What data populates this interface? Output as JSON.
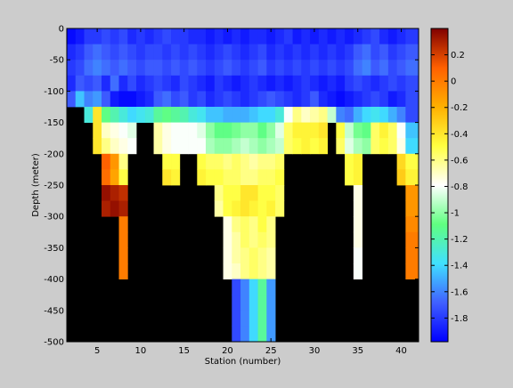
{
  "chart_data": {
    "type": "heatmap",
    "title": "",
    "xlabel": "Station (number)",
    "ylabel": "Depth (meter)",
    "xlim": [
      1.5,
      42.0
    ],
    "ylim": [
      -500,
      0
    ],
    "xticks": [
      5,
      10,
      15,
      20,
      25,
      30,
      35,
      40
    ],
    "yticks": [
      0,
      -50,
      -100,
      -150,
      -200,
      -250,
      -300,
      -350,
      -400,
      -450,
      -500
    ],
    "x": [
      2,
      3,
      4,
      5,
      6,
      7,
      8,
      9,
      10,
      11,
      12,
      13,
      14,
      15,
      16,
      17,
      18,
      19,
      20,
      21,
      22,
      23,
      24,
      25,
      26,
      27,
      28,
      29,
      30,
      31,
      32,
      33,
      34,
      35,
      36,
      37,
      38,
      39,
      40,
      41
    ],
    "y": [
      -12.5,
      -37.5,
      -62.5,
      -87.5,
      -112.5,
      -137.5,
      -162.5,
      -187.5,
      -212.5,
      -237.5,
      -262.5,
      -287.5,
      -312.5,
      -337.5,
      -362.5,
      -387.5,
      -412.5,
      -437.5,
      -462.5,
      -487.5
    ],
    "z": [
      [
        -1.95,
        -1.9,
        -1.8,
        -1.8,
        -1.75,
        -1.8,
        -1.75,
        -1.85,
        -1.8,
        -1.85,
        -1.8,
        -1.75,
        -1.8,
        -1.8,
        -1.85,
        -1.85,
        -1.9,
        -1.85,
        -1.9,
        -1.85,
        -1.9,
        -1.85,
        -1.85,
        -1.9,
        -1.85,
        -1.8,
        -1.9,
        -1.85,
        -1.9,
        -1.85,
        -1.9,
        -1.85,
        -1.9,
        -1.85,
        -1.8,
        -1.75,
        -1.85,
        -1.9,
        -1.85,
        -1.8
      ],
      [
        -1.85,
        -1.8,
        -1.7,
        -1.65,
        -1.7,
        -1.75,
        -1.7,
        -1.75,
        -1.8,
        -1.75,
        -1.75,
        -1.8,
        -1.75,
        -1.8,
        -1.75,
        -1.8,
        -1.85,
        -1.8,
        -1.75,
        -1.8,
        -1.85,
        -1.8,
        -1.75,
        -1.85,
        -1.8,
        -1.85,
        -1.8,
        -1.85,
        -1.8,
        -1.85,
        -1.8,
        -1.85,
        -1.8,
        -1.7,
        -1.65,
        -1.75,
        -1.7,
        -1.8,
        -1.75,
        -1.7
      ],
      [
        -1.8,
        -1.75,
        -1.65,
        -1.6,
        -1.65,
        -1.7,
        -1.65,
        -1.7,
        -1.75,
        -1.7,
        -1.7,
        -1.75,
        -1.7,
        -1.75,
        -1.7,
        -1.75,
        -1.8,
        -1.75,
        -1.7,
        -1.75,
        -1.8,
        -1.75,
        -1.7,
        -1.8,
        -1.75,
        -1.8,
        -1.75,
        -1.8,
        -1.75,
        -1.8,
        -1.75,
        -1.8,
        -1.75,
        -1.65,
        -1.6,
        -1.7,
        -1.65,
        -1.75,
        -1.7,
        -1.65
      ],
      [
        -1.85,
        -1.7,
        -1.75,
        -1.7,
        -1.85,
        -1.65,
        -1.85,
        -1.75,
        -1.85,
        -1.8,
        -1.75,
        -1.8,
        -1.85,
        -1.75,
        -1.8,
        -1.85,
        -1.9,
        -1.8,
        -1.85,
        -1.9,
        -1.85,
        -1.8,
        -1.85,
        -1.9,
        -1.85,
        -1.9,
        -1.85,
        -1.8,
        -1.85,
        -1.9,
        -1.85,
        -1.9,
        -1.8,
        -1.75,
        -1.8,
        -1.85,
        -1.8,
        -1.75,
        -1.8,
        -1.75
      ],
      [
        -1.7,
        -1.45,
        -1.6,
        -1.55,
        -1.7,
        -1.9,
        -1.95,
        -1.95,
        -1.9,
        -1.85,
        -1.7,
        -1.65,
        -1.75,
        -1.7,
        -1.8,
        -1.75,
        -1.85,
        -1.8,
        -1.75,
        -1.8,
        -1.85,
        -1.8,
        -1.75,
        -1.7,
        -1.75,
        -1.8,
        -1.85,
        -1.8,
        -1.7,
        -1.85,
        -1.9,
        -1.95,
        -1.9,
        -1.85,
        -1.8,
        -1.75,
        -1.8,
        -1.9,
        -1.85,
        -1.75
      ],
      [
        null,
        null,
        -1.3,
        -0.4,
        -1.1,
        -1.2,
        -1.3,
        -1.4,
        -1.35,
        -1.3,
        -1.15,
        -1.1,
        -1.15,
        -1.2,
        -1.3,
        -1.35,
        -1.45,
        -1.45,
        -1.5,
        -1.5,
        -1.5,
        -1.45,
        -1.4,
        -1.4,
        -1.3,
        -0.8,
        -0.6,
        -0.7,
        -0.65,
        -0.6,
        -0.9,
        -1.6,
        -1.65,
        -1.5,
        -1.4,
        -1.35,
        -1.4,
        -1.5,
        -1.6,
        -1.75
      ],
      [
        null,
        null,
        null,
        -0.4,
        -0.7,
        -0.75,
        -0.8,
        -0.85,
        null,
        null,
        -0.65,
        -0.75,
        -0.8,
        -0.8,
        -0.8,
        -0.85,
        -1.0,
        -1.1,
        -1.1,
        -1.05,
        -1.0,
        -1.0,
        -1.1,
        -1.0,
        -0.85,
        -0.55,
        -0.45,
        -0.45,
        -0.45,
        -0.4,
        null,
        -0.5,
        -0.9,
        -1.05,
        -1.1,
        -0.55,
        -0.45,
        -0.55,
        -0.8,
        -1.45
      ],
      [
        null,
        null,
        null,
        -0.4,
        -0.6,
        -0.7,
        -0.75,
        -0.8,
        null,
        null,
        -0.65,
        -0.75,
        -0.8,
        -0.8,
        -0.8,
        -0.8,
        -0.95,
        -1.0,
        -1.0,
        -0.95,
        -0.9,
        -0.95,
        -1.0,
        -0.95,
        -0.9,
        -0.55,
        -0.5,
        -0.45,
        -0.5,
        -0.45,
        null,
        -0.55,
        -0.85,
        -0.95,
        -1.0,
        -0.55,
        -0.5,
        -0.55,
        -0.75,
        -1.4
      ],
      [
        null,
        null,
        null,
        null,
        0.1,
        -0.1,
        -0.6,
        null,
        null,
        null,
        null,
        -0.5,
        -0.5,
        null,
        null,
        -0.5,
        -0.55,
        -0.55,
        -0.6,
        -0.55,
        -0.6,
        -0.65,
        -0.6,
        -0.6,
        -0.55,
        null,
        null,
        null,
        null,
        null,
        null,
        null,
        -0.5,
        -0.45,
        null,
        null,
        null,
        null,
        -0.35,
        -0.5
      ],
      [
        null,
        null,
        null,
        null,
        0.05,
        -0.15,
        -0.5,
        null,
        null,
        null,
        null,
        -0.4,
        -0.45,
        null,
        null,
        -0.45,
        -0.5,
        -0.5,
        -0.55,
        -0.55,
        -0.6,
        -0.6,
        -0.55,
        -0.55,
        -0.5,
        null,
        null,
        null,
        null,
        null,
        null,
        null,
        -0.5,
        -0.45,
        null,
        null,
        null,
        null,
        -0.3,
        -0.45
      ],
      [
        null,
        null,
        null,
        null,
        0.35,
        0.3,
        0.25,
        null,
        null,
        null,
        null,
        null,
        null,
        null,
        null,
        null,
        null,
        -0.6,
        -0.5,
        -0.5,
        -0.4,
        -0.4,
        -0.5,
        -0.5,
        -0.55,
        null,
        null,
        null,
        null,
        null,
        null,
        null,
        null,
        -0.75,
        null,
        null,
        null,
        null,
        null,
        -0.1
      ],
      [
        null,
        null,
        null,
        null,
        0.3,
        0.35,
        0.3,
        null,
        null,
        null,
        null,
        null,
        null,
        null,
        null,
        null,
        null,
        -0.65,
        -0.5,
        -0.45,
        -0.4,
        -0.45,
        -0.5,
        -0.45,
        -0.55,
        null,
        null,
        null,
        null,
        null,
        null,
        null,
        null,
        -0.75,
        null,
        null,
        null,
        null,
        null,
        -0.1
      ],
      [
        null,
        null,
        null,
        null,
        null,
        null,
        0.0,
        null,
        null,
        null,
        null,
        null,
        null,
        null,
        null,
        null,
        null,
        null,
        -0.75,
        -0.6,
        -0.55,
        -0.6,
        -0.5,
        -0.6,
        null,
        null,
        null,
        null,
        null,
        null,
        null,
        null,
        null,
        -0.75,
        null,
        null,
        null,
        null,
        null,
        -0.05
      ],
      [
        null,
        null,
        null,
        null,
        null,
        null,
        0.0,
        null,
        null,
        null,
        null,
        null,
        null,
        null,
        null,
        null,
        null,
        null,
        -0.75,
        -0.65,
        -0.55,
        -0.6,
        -0.55,
        -0.6,
        null,
        null,
        null,
        null,
        null,
        null,
        null,
        null,
        null,
        -0.75,
        null,
        null,
        null,
        null,
        null,
        0.0
      ],
      [
        null,
        null,
        null,
        null,
        null,
        null,
        0.0,
        null,
        null,
        null,
        null,
        null,
        null,
        null,
        null,
        null,
        null,
        null,
        -0.75,
        -0.65,
        -0.6,
        -0.55,
        -0.6,
        -0.65,
        null,
        null,
        null,
        null,
        null,
        null,
        null,
        null,
        null,
        -0.8,
        null,
        null,
        null,
        null,
        null,
        0.0
      ],
      [
        null,
        null,
        null,
        null,
        null,
        null,
        0.0,
        null,
        null,
        null,
        null,
        null,
        null,
        null,
        null,
        null,
        null,
        null,
        -0.75,
        -0.7,
        -0.6,
        -0.55,
        -0.6,
        -0.65,
        null,
        null,
        null,
        null,
        null,
        null,
        null,
        null,
        null,
        -0.8,
        null,
        null,
        null,
        null,
        null,
        0.0
      ],
      [
        null,
        null,
        null,
        null,
        null,
        null,
        null,
        null,
        null,
        null,
        null,
        null,
        null,
        null,
        null,
        null,
        null,
        null,
        null,
        -1.75,
        -1.6,
        -1.4,
        -1.15,
        -1.55,
        null,
        null,
        null,
        null,
        null,
        null,
        null,
        null,
        null,
        null,
        null,
        null,
        null,
        null,
        null,
        null
      ],
      [
        null,
        null,
        null,
        null,
        null,
        null,
        null,
        null,
        null,
        null,
        null,
        null,
        null,
        null,
        null,
        null,
        null,
        null,
        null,
        -1.75,
        -1.6,
        -1.4,
        -1.15,
        -1.55,
        null,
        null,
        null,
        null,
        null,
        null,
        null,
        null,
        null,
        null,
        null,
        null,
        null,
        null,
        null,
        null
      ],
      [
        null,
        null,
        null,
        null,
        null,
        null,
        null,
        null,
        null,
        null,
        null,
        null,
        null,
        null,
        null,
        null,
        null,
        null,
        null,
        -1.75,
        -1.6,
        -1.4,
        -1.15,
        -1.55,
        null,
        null,
        null,
        null,
        null,
        null,
        null,
        null,
        null,
        null,
        null,
        null,
        null,
        null,
        null,
        null
      ],
      [
        null,
        null,
        null,
        null,
        null,
        null,
        null,
        null,
        null,
        null,
        null,
        null,
        null,
        null,
        null,
        null,
        null,
        null,
        null,
        -1.75,
        -1.6,
        -1.4,
        -1.15,
        -1.55,
        null,
        null,
        null,
        null,
        null,
        null,
        null,
        null,
        null,
        null,
        null,
        null,
        null,
        null,
        null,
        null
      ]
    ],
    "colorbar": {
      "range": [
        -1.98,
        0.4
      ],
      "ticks": [
        0.2,
        0,
        -0.2,
        -0.4,
        -0.6,
        -0.8,
        -1,
        -1.2,
        -1.4,
        -1.6,
        -1.8
      ],
      "colormap": [
        "#0000ff",
        "#4060ff",
        "#40e0ff",
        "#60ff80",
        "#ffffff",
        "#ffff40",
        "#ffb000",
        "#ff6000",
        "#800000"
      ]
    },
    "missing_color": "#000000",
    "grid": false
  }
}
